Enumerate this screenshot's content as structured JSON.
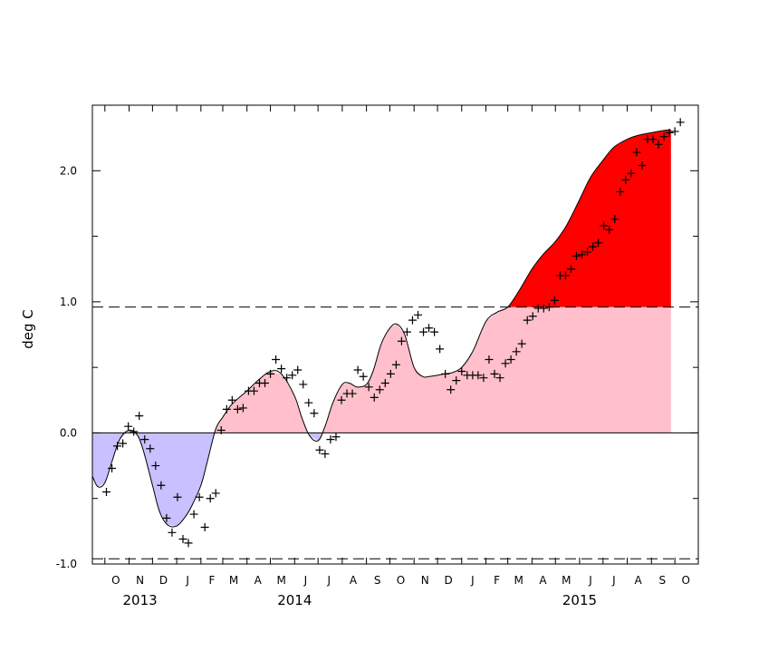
{
  "chart_data": {
    "type": "area",
    "title": "",
    "xlabel": "",
    "ylabel": "deg C",
    "ylim": [
      -1.0,
      2.5
    ],
    "xlim": [
      "2013-09-15",
      "2015-10-31"
    ],
    "y_ticks": [
      -1.0,
      0.0,
      1.0,
      2.0
    ],
    "y_tick_labels": [
      "-1.0",
      "0.0",
      "1.0",
      "2.0"
    ],
    "y_minor_ticks": [
      -0.5,
      0.5,
      1.5
    ],
    "month_ticks": [
      "O",
      "N",
      "D",
      "J",
      "F",
      "M",
      "A",
      "M",
      "J",
      "J",
      "A",
      "S",
      "O",
      "N",
      "D",
      "J",
      "F",
      "M",
      "A",
      "M",
      "J",
      "J",
      "A",
      "S",
      "O"
    ],
    "month_dates": [
      "2013-10-15",
      "2013-11-15",
      "2013-12-15",
      "2014-01-15",
      "2014-02-15",
      "2014-03-15",
      "2014-04-15",
      "2014-05-15",
      "2014-06-15",
      "2014-07-15",
      "2014-08-15",
      "2014-09-15",
      "2014-10-15",
      "2014-11-15",
      "2014-12-15",
      "2015-01-15",
      "2015-02-15",
      "2015-03-15",
      "2015-04-15",
      "2015-05-15",
      "2015-06-15",
      "2015-07-15",
      "2015-08-15",
      "2015-09-15",
      "2015-10-15"
    ],
    "years": [
      {
        "label": "2013",
        "date": "2013-11-15"
      },
      {
        "label": "2014",
        "date": "2014-06-01"
      },
      {
        "label": "2015",
        "date": "2015-06-01"
      }
    ],
    "thresholds": [
      0.96,
      -0.96
    ],
    "zero_line": 0.0,
    "colors": {
      "negative_fill": "#c8c0ff",
      "positive_fill": "#ffc0cb",
      "above_threshold_fill": "#ff0000",
      "line": "#000000",
      "markers": "#000000"
    },
    "smoothed": {
      "x": [
        "2013-09-15",
        "2013-09-22",
        "2013-10-01",
        "2013-10-10",
        "2013-10-20",
        "2013-11-01",
        "2013-11-12",
        "2013-11-20",
        "2013-12-01",
        "2013-12-10",
        "2013-12-20",
        "2014-01-01",
        "2014-01-12",
        "2014-01-20",
        "2014-02-01",
        "2014-02-10",
        "2014-02-20",
        "2014-03-01",
        "2014-03-10",
        "2014-03-20",
        "2014-04-01",
        "2014-04-15",
        "2014-05-01",
        "2014-05-15",
        "2014-06-01",
        "2014-06-10",
        "2014-06-20",
        "2014-07-01",
        "2014-07-10",
        "2014-07-20",
        "2014-08-01",
        "2014-08-10",
        "2014-08-20",
        "2014-09-01",
        "2014-09-10",
        "2014-09-20",
        "2014-10-01",
        "2014-10-10",
        "2014-10-20",
        "2014-11-01",
        "2014-11-12",
        "2014-11-20",
        "2014-12-01",
        "2014-12-10",
        "2014-12-20",
        "2015-01-01",
        "2015-01-15",
        "2015-02-01",
        "2015-02-15",
        "2015-03-01",
        "2015-03-15",
        "2015-04-01",
        "2015-04-15",
        "2015-05-01",
        "2015-05-15",
        "2015-06-01",
        "2015-06-15",
        "2015-07-01",
        "2015-07-15",
        "2015-08-01",
        "2015-08-15",
        "2015-09-01",
        "2015-09-10",
        "2015-09-20",
        "2015-09-26"
      ],
      "y": [
        -0.33,
        -0.41,
        -0.38,
        -0.22,
        -0.05,
        0.02,
        -0.02,
        -0.15,
        -0.4,
        -0.6,
        -0.7,
        -0.71,
        -0.64,
        -0.56,
        -0.4,
        -0.2,
        0.03,
        0.12,
        0.2,
        0.26,
        0.32,
        0.4,
        0.47,
        0.45,
        0.28,
        0.12,
        -0.02,
        -0.06,
        0.05,
        0.23,
        0.37,
        0.38,
        0.35,
        0.37,
        0.48,
        0.68,
        0.8,
        0.83,
        0.75,
        0.5,
        0.43,
        0.43,
        0.44,
        0.45,
        0.46,
        0.5,
        0.62,
        0.85,
        0.92,
        0.96,
        1.08,
        1.25,
        1.36,
        1.46,
        1.58,
        1.78,
        1.95,
        2.08,
        2.18,
        2.24,
        2.27,
        2.29,
        2.3,
        2.31,
        2.31
      ]
    },
    "weekly": {
      "x": [
        "2013-10-03",
        "2013-10-10",
        "2013-10-17",
        "2013-10-24",
        "2013-10-31",
        "2013-11-07",
        "2013-11-14",
        "2013-11-21",
        "2013-11-28",
        "2013-12-05",
        "2013-12-12",
        "2013-12-19",
        "2013-12-26",
        "2014-01-02",
        "2014-01-09",
        "2014-01-16",
        "2014-01-23",
        "2014-01-30",
        "2014-02-06",
        "2014-02-13",
        "2014-02-20",
        "2014-02-27",
        "2014-03-06",
        "2014-03-13",
        "2014-03-20",
        "2014-03-27",
        "2014-04-03",
        "2014-04-10",
        "2014-04-17",
        "2014-04-24",
        "2014-05-01",
        "2014-05-08",
        "2014-05-15",
        "2014-05-22",
        "2014-05-29",
        "2014-06-05",
        "2014-06-12",
        "2014-06-19",
        "2014-06-26",
        "2014-07-03",
        "2014-07-10",
        "2014-07-17",
        "2014-07-24",
        "2014-07-31",
        "2014-08-07",
        "2014-08-14",
        "2014-08-21",
        "2014-08-28",
        "2014-09-04",
        "2014-09-11",
        "2014-09-18",
        "2014-09-25",
        "2014-10-02",
        "2014-10-09",
        "2014-10-16",
        "2014-10-23",
        "2014-10-30",
        "2014-11-06",
        "2014-11-13",
        "2014-11-20",
        "2014-11-27",
        "2014-12-04",
        "2014-12-11",
        "2014-12-18",
        "2014-12-25",
        "2015-01-01",
        "2015-01-08",
        "2015-01-15",
        "2015-01-22",
        "2015-01-29",
        "2015-02-05",
        "2015-02-12",
        "2015-02-19",
        "2015-02-26",
        "2015-03-05",
        "2015-03-12",
        "2015-03-19",
        "2015-03-26",
        "2015-04-02",
        "2015-04-09",
        "2015-04-16",
        "2015-04-23",
        "2015-04-30",
        "2015-05-07",
        "2015-05-14",
        "2015-05-21",
        "2015-05-28",
        "2015-06-04",
        "2015-06-11",
        "2015-06-18",
        "2015-06-25",
        "2015-07-02",
        "2015-07-09",
        "2015-07-16",
        "2015-07-23",
        "2015-07-30",
        "2015-08-06",
        "2015-08-13",
        "2015-08-20",
        "2015-08-27",
        "2015-09-03",
        "2015-09-10",
        "2015-09-17",
        "2015-09-24",
        "2015-10-01",
        "2015-10-08"
      ],
      "y": [
        -0.45,
        -0.27,
        -0.1,
        -0.08,
        0.05,
        0.01,
        0.13,
        -0.05,
        -0.12,
        -0.25,
        -0.4,
        -0.65,
        -0.76,
        -0.49,
        -0.81,
        -0.84,
        -0.62,
        -0.49,
        -0.72,
        -0.5,
        -0.46,
        0.02,
        0.18,
        0.25,
        0.18,
        0.19,
        0.32,
        0.32,
        0.38,
        0.38,
        0.45,
        0.56,
        0.49,
        0.42,
        0.44,
        0.48,
        0.37,
        0.23,
        0.15,
        -0.13,
        -0.16,
        -0.05,
        -0.03,
        0.25,
        0.3,
        0.3,
        0.48,
        0.43,
        0.35,
        0.27,
        0.33,
        0.38,
        0.45,
        0.52,
        0.7,
        0.77,
        0.86,
        0.9,
        0.77,
        0.8,
        0.77,
        0.64,
        0.45,
        0.33,
        0.4,
        0.47,
        0.44,
        0.44,
        0.44,
        0.42,
        0.56,
        0.45,
        0.42,
        0.53,
        0.56,
        0.62,
        0.68,
        0.86,
        0.89,
        0.95,
        0.95,
        0.96,
        1.01,
        1.2,
        1.2,
        1.25,
        1.35,
        1.36,
        1.38,
        1.42,
        1.45,
        1.58,
        1.55,
        1.63,
        1.84,
        1.93,
        1.98,
        2.14,
        2.04,
        2.24,
        2.24,
        2.2,
        2.26,
        2.29,
        2.3,
        2.37
      ]
    }
  }
}
